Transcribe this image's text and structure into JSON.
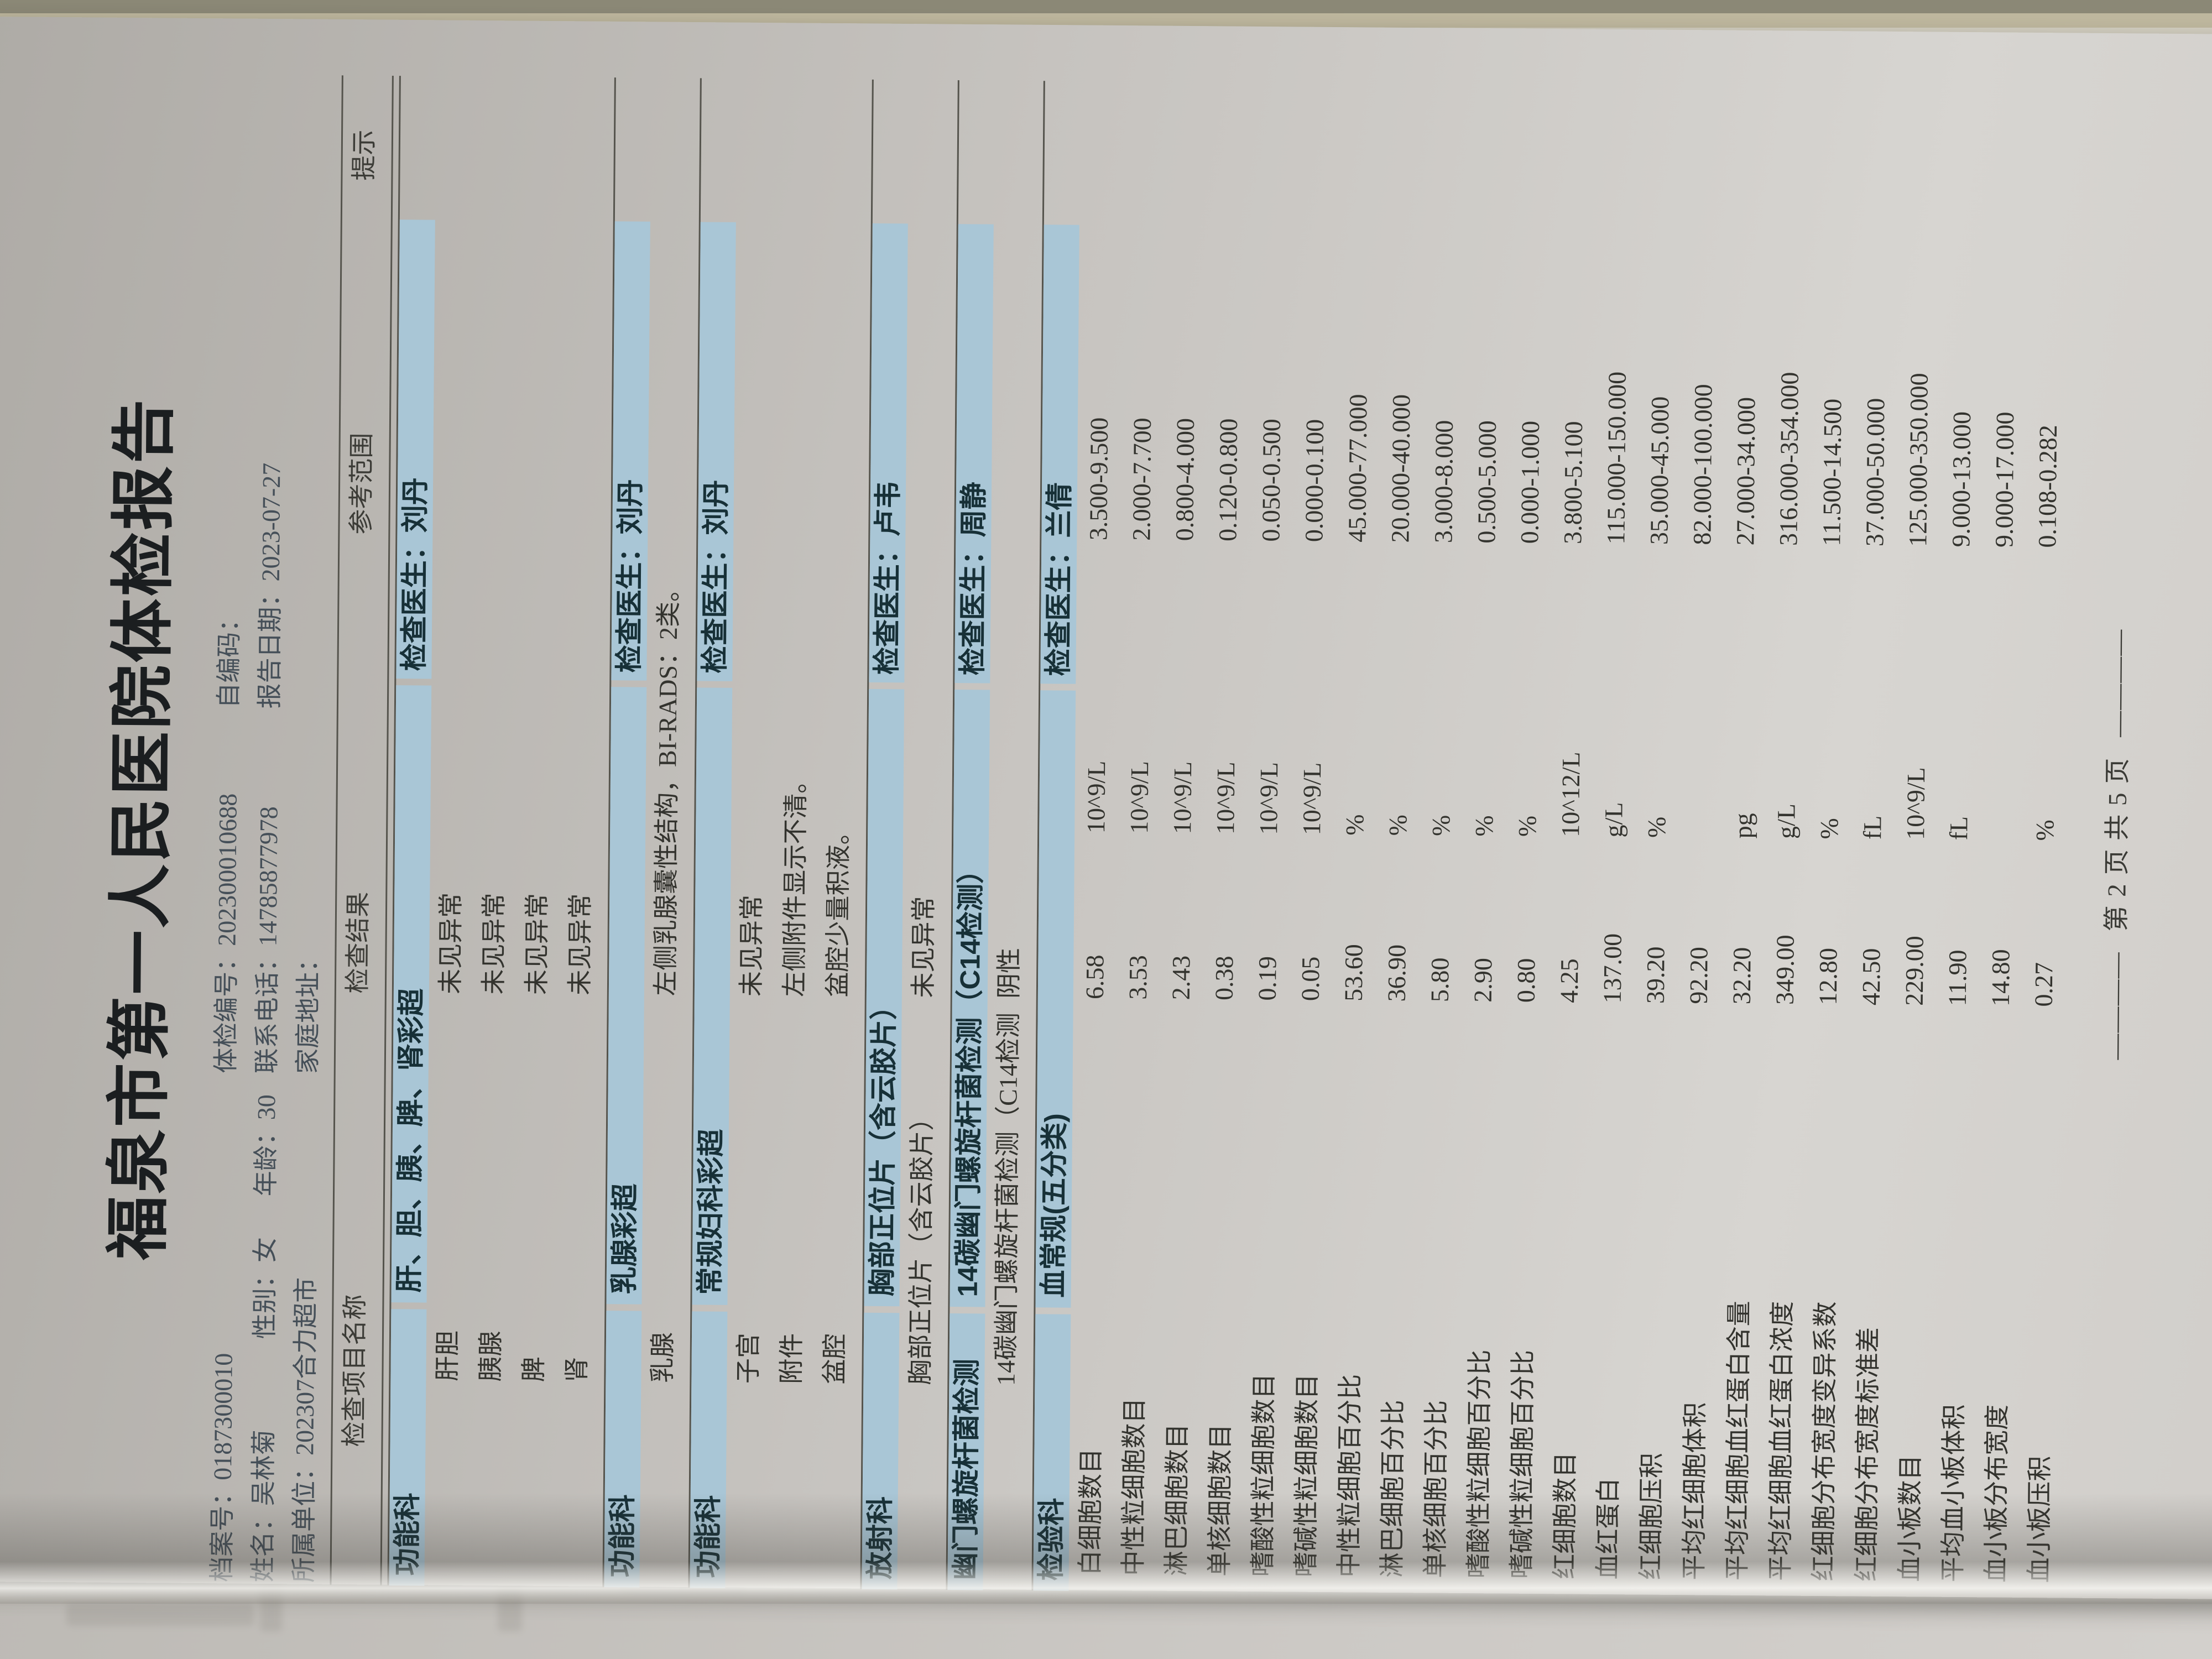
{
  "title": "福泉市第一人民医院体检报告",
  "header": {
    "rows": [
      [
        {
          "label": "档案号",
          "value": "0187300010"
        },
        {
          "label": "体检编号",
          "value": "202300010688"
        },
        {
          "label": "自编码",
          "value": ""
        }
      ],
      [
        {
          "label": "姓名",
          "value": "吴林菊"
        },
        {
          "label": "性别",
          "value": "女"
        },
        {
          "label": "年龄",
          "value": "30"
        },
        {
          "label": "联系电话",
          "value": "14785877978"
        },
        {
          "label": "报告日期",
          "value": "2023-07-27"
        }
      ],
      [
        {
          "label": "所属单位",
          "value": "202307合力超市"
        },
        {
          "label": "家庭地址",
          "value": ""
        }
      ]
    ]
  },
  "table": {
    "columns": [
      "检查项目名称",
      "检查结果",
      "参考范围",
      "提示"
    ],
    "doctor_label": "检查医生："
  },
  "sections": [
    {
      "dept": "功能科",
      "exam": "肝、胆、胰、脾、肾彩超",
      "doctor": "刘丹",
      "type": "exam",
      "items": [
        {
          "name": "肝胆",
          "result": "未见异常"
        },
        {
          "name": "胰腺",
          "result": "未见异常"
        },
        {
          "name": "脾",
          "result": "未见异常"
        },
        {
          "name": "肾",
          "result": "未见异常"
        }
      ]
    },
    {
      "dept": "功能科",
      "exam": "乳腺彩超",
      "doctor": "刘丹",
      "type": "exam",
      "items": [
        {
          "name": "乳腺",
          "result": "左侧乳腺囊性结构，BI-RADS：2类。"
        }
      ]
    },
    {
      "dept": "功能科",
      "exam": "常规妇科彩超",
      "doctor": "刘丹",
      "type": "exam",
      "items": [
        {
          "name": "子宫",
          "result": "未见异常"
        },
        {
          "name": "附件",
          "result": "左侧附件显示不清。"
        },
        {
          "name": "盆腔",
          "result": "盆腔少量积液。"
        }
      ]
    },
    {
      "dept": "放射科",
      "exam": "胸部正位片（含云胶片）",
      "doctor": "卢韦",
      "type": "exam",
      "items": [
        {
          "name": "胸部正位片（含云胶片）",
          "result": "未见异常"
        }
      ]
    },
    {
      "dept": "幽门螺旋杆菌检测",
      "exam": "14碳幽门螺旋杆菌检测（C14检测）",
      "doctor": "周静",
      "type": "exam",
      "items": [
        {
          "name": "14碳幽门螺旋杆菌检测（C14检测",
          "result": "阴性"
        }
      ]
    },
    {
      "dept": "检验科",
      "exam": "血常规(五分类)",
      "doctor": "兰倩",
      "type": "lab",
      "items": [
        {
          "name": "白细胞数目",
          "result": "6.58",
          "unit": "10^9/L",
          "ref": "3.500-9.500"
        },
        {
          "name": "中性粒细胞数目",
          "result": "3.53",
          "unit": "10^9/L",
          "ref": "2.000-7.700"
        },
        {
          "name": "淋巴细胞数目",
          "result": "2.43",
          "unit": "10^9/L",
          "ref": "0.800-4.000"
        },
        {
          "name": "单核细胞数目",
          "result": "0.38",
          "unit": "10^9/L",
          "ref": "0.120-0.800"
        },
        {
          "name": "嗜酸性粒细胞数目",
          "result": "0.19",
          "unit": "10^9/L",
          "ref": "0.050-0.500"
        },
        {
          "name": "嗜碱性粒细胞数目",
          "result": "0.05",
          "unit": "10^9/L",
          "ref": "0.000-0.100"
        },
        {
          "name": "中性粒细胞百分比",
          "result": "53.60",
          "unit": "%",
          "ref": "45.000-77.000"
        },
        {
          "name": "淋巴细胞百分比",
          "result": "36.90",
          "unit": "%",
          "ref": "20.000-40.000"
        },
        {
          "name": "单核细胞百分比",
          "result": "5.80",
          "unit": "%",
          "ref": "3.000-8.000"
        },
        {
          "name": "嗜酸性粒细胞百分比",
          "result": "2.90",
          "unit": "%",
          "ref": "0.500-5.000"
        },
        {
          "name": "嗜碱性粒细胞百分比",
          "result": "0.80",
          "unit": "%",
          "ref": "0.000-1.000"
        },
        {
          "name": "红细胞数目",
          "result": "4.25",
          "unit": "10^12/L",
          "ref": "3.800-5.100"
        },
        {
          "name": "血红蛋白",
          "result": "137.00",
          "unit": "g/L",
          "ref": "115.000-150.000"
        },
        {
          "name": "红细胞压积",
          "result": "39.20",
          "unit": "%",
          "ref": "35.000-45.000"
        },
        {
          "name": "平均红细胞体积",
          "result": "92.20",
          "unit": "",
          "ref": "82.000-100.000"
        },
        {
          "name": "平均红细胞血红蛋白含量",
          "result": "32.20",
          "unit": "pg",
          "ref": "27.000-34.000"
        },
        {
          "name": "平均红细胞血红蛋白浓度",
          "result": "349.00",
          "unit": "g/L",
          "ref": "316.000-354.000"
        },
        {
          "name": "红细胞分布宽度变异系数",
          "result": "12.80",
          "unit": "%",
          "ref": "11.500-14.500"
        },
        {
          "name": "红细胞分布宽度标准差",
          "result": "42.50",
          "unit": "fL",
          "ref": "37.000-50.000"
        },
        {
          "name": "血小板数目",
          "result": "229.00",
          "unit": "10^9/L",
          "ref": "125.000-350.000"
        },
        {
          "name": "平均血小板体积",
          "result": "11.90",
          "unit": "fL",
          "ref": "9.000-13.000"
        },
        {
          "name": "血小板分布宽度",
          "result": "14.80",
          "unit": "",
          "ref": "9.000-17.000"
        },
        {
          "name": "血小板压积",
          "result": "0.27",
          "unit": "%",
          "ref": "0.108-0.282"
        }
      ]
    }
  ],
  "footer": {
    "dashes": "————",
    "page_label": "第 2 页  共 5 页"
  },
  "colors": {
    "section_bar": "#a9c6d6",
    "paper": "#c6c3bf",
    "rule": "#55544d",
    "header_text": "#454f58"
  }
}
